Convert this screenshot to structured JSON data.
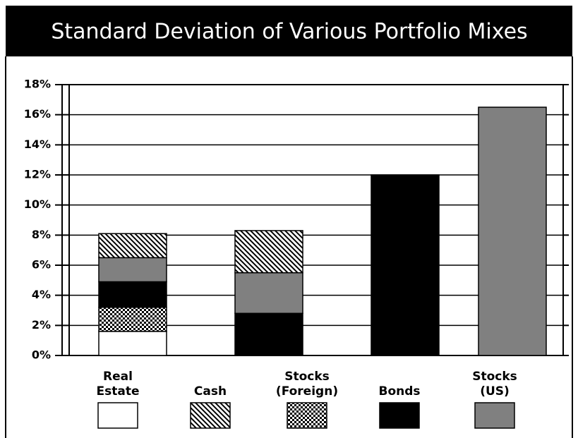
{
  "chart_data": {
    "type": "stacked_bar",
    "title": "Standard Deviation of Various Portfolio Mixes",
    "categories": [
      null,
      null,
      null,
      null
    ],
    "series": [
      {
        "name": "Real Estate",
        "color": "#ffffff",
        "values": [
          1.6,
          0,
          0,
          0
        ]
      },
      {
        "name": "Cash",
        "color": "#000000",
        "pattern": "diagonal",
        "values": [
          1.6,
          2.8,
          0,
          0
        ]
      },
      {
        "name": "Stocks (Foreign)",
        "color": "#000000",
        "pattern": "checker",
        "values": [
          1.6,
          0,
          0,
          0
        ]
      },
      {
        "name": "Bonds",
        "color": "#000000",
        "values": [
          1.7,
          2.8,
          12,
          0
        ]
      },
      {
        "name": "Stocks (US)",
        "color": "#808080",
        "values": [
          1.6,
          2.7,
          0,
          16.5
        ]
      }
    ],
    "ylim": [
      0,
      18
    ],
    "yticks": [
      {
        "value": 0,
        "label": "0%"
      },
      {
        "value": 2,
        "label": "2%"
      },
      {
        "value": 4,
        "label": "4%"
      },
      {
        "value": 6,
        "label": "6%"
      },
      {
        "value": 8,
        "label": "8%"
      },
      {
        "value": 10,
        "label": "10%"
      },
      {
        "value": 12,
        "label": "12%"
      },
      {
        "value": 14,
        "label": "14%"
      },
      {
        "value": 16,
        "label": "16%"
      },
      {
        "value": 18,
        "label": "18%"
      }
    ],
    "grid": true
  }
}
